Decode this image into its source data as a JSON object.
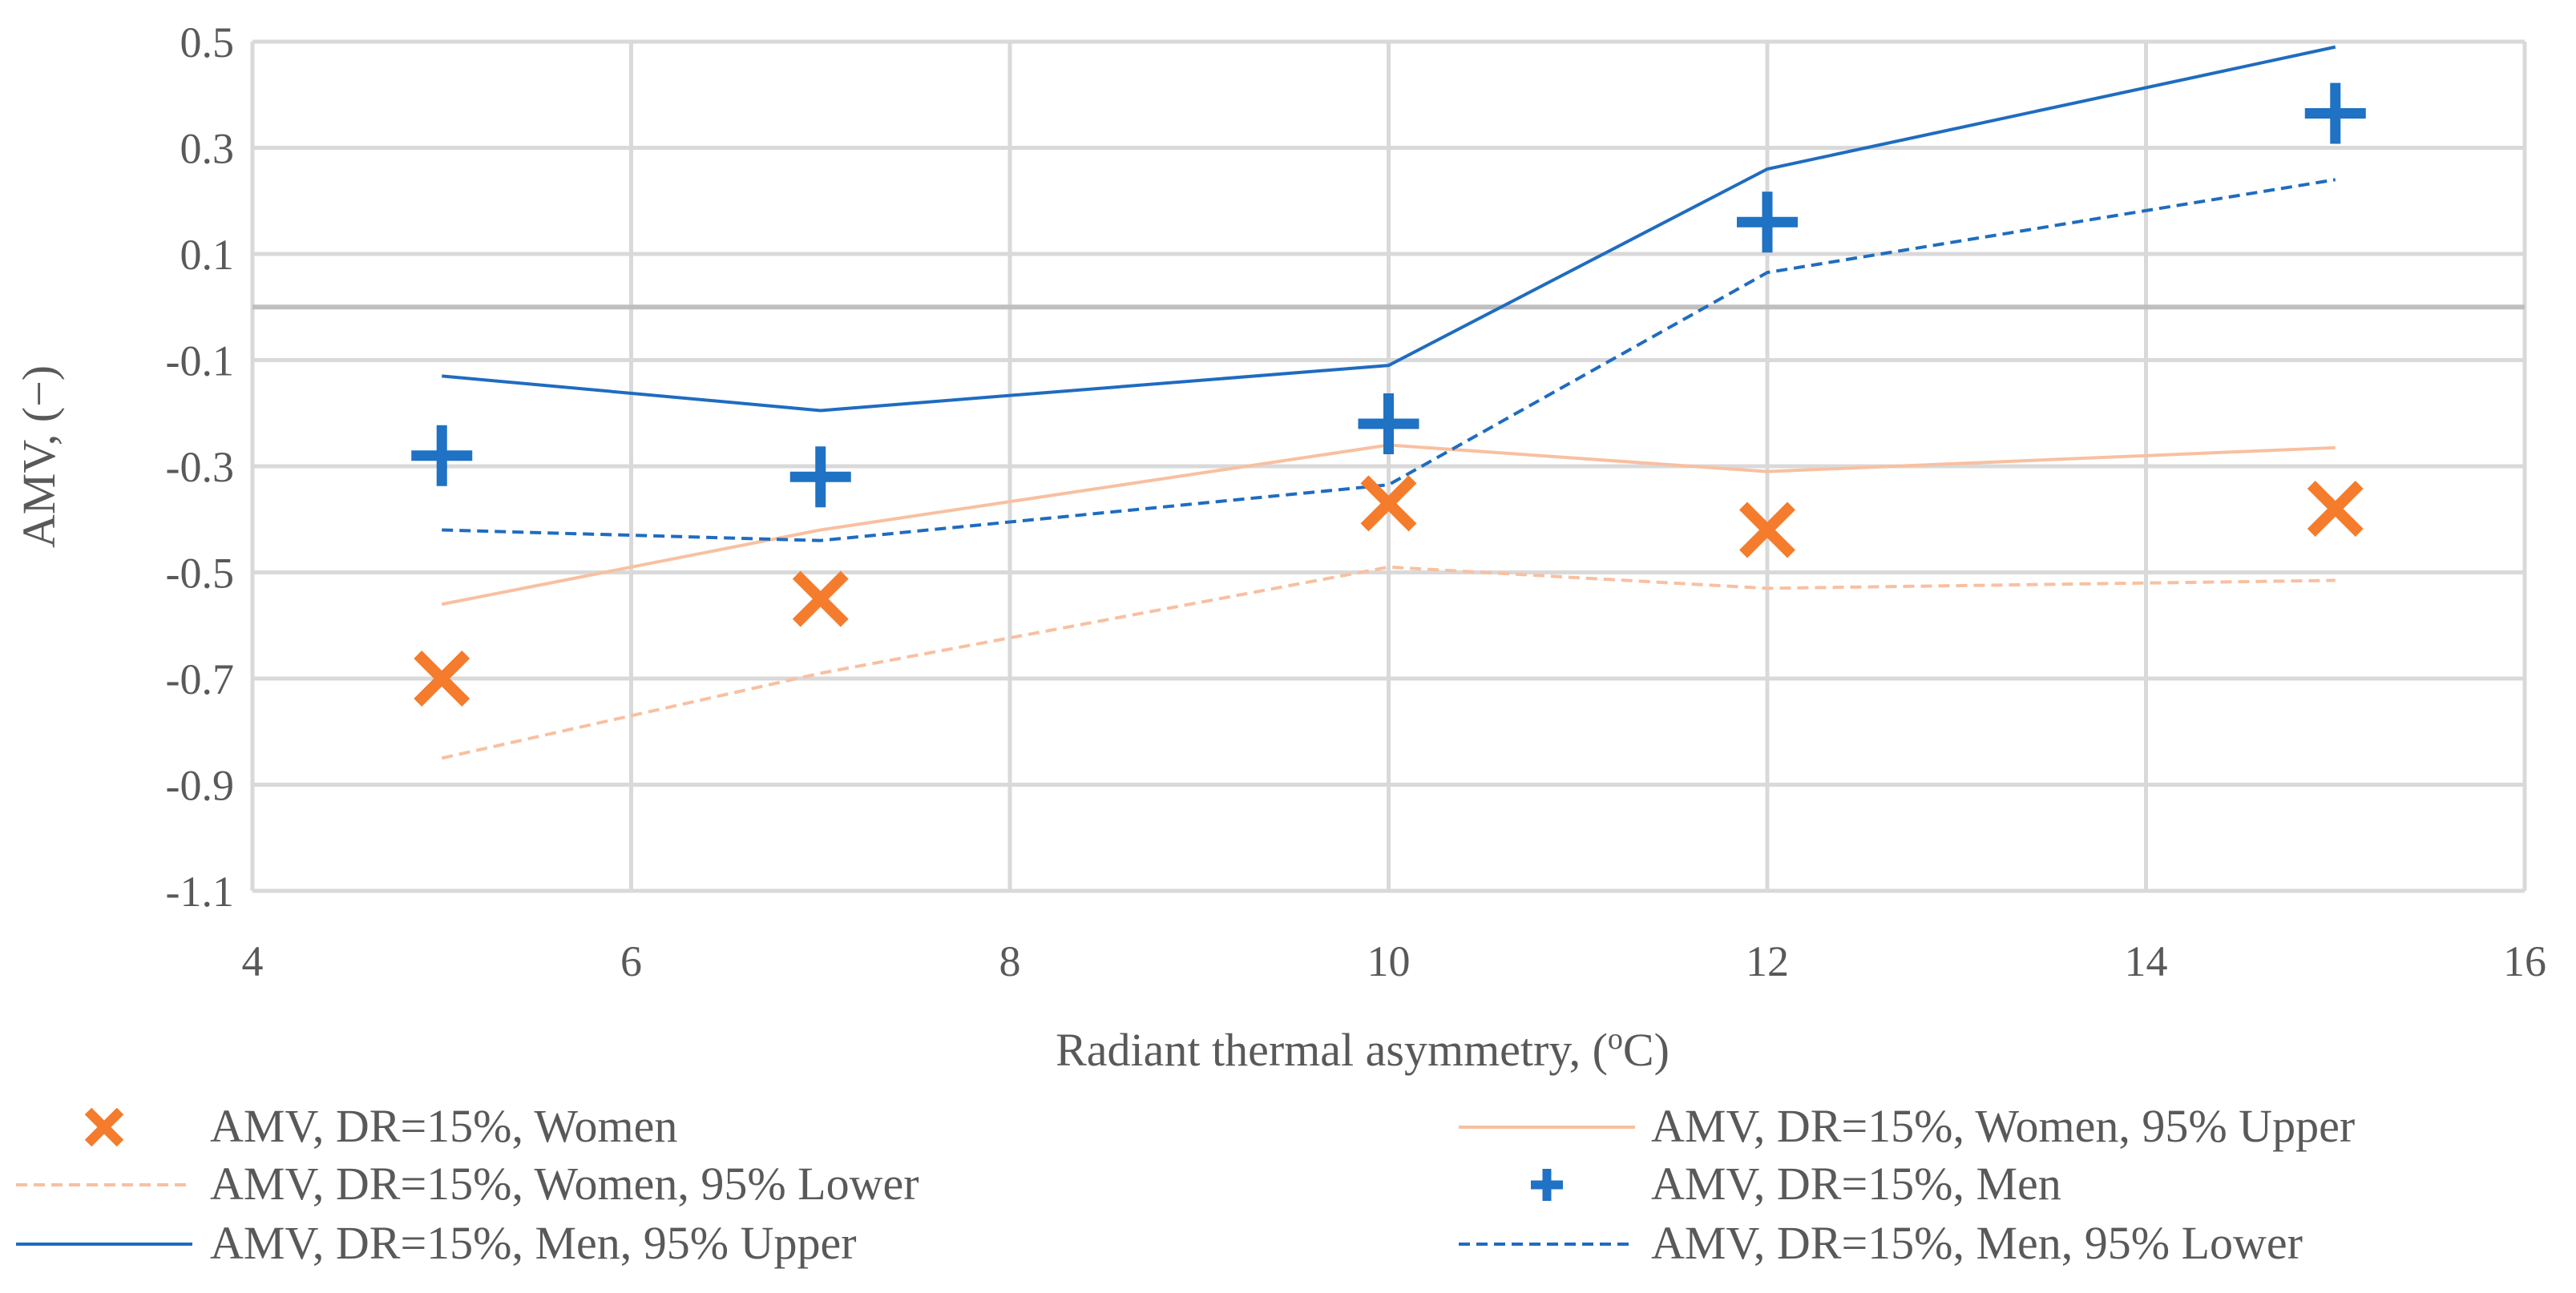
{
  "chart_data": {
    "type": "scatter",
    "title": "",
    "xlabel": "Radiant thermal asymmetry, (oC)",
    "xlabel_parts": [
      "Radiant thermal asymmetry, (",
      "o",
      "C)"
    ],
    "ylabel": "AMV, (−)",
    "xlim": [
      4,
      16
    ],
    "ylim": [
      -1.1,
      0.5
    ],
    "xticks": [
      "4",
      "6",
      "8",
      "10",
      "12",
      "14",
      "16"
    ],
    "yticks": [
      "0.5",
      "0.3",
      "0.1",
      "-0.1",
      "-0.3",
      "-0.5",
      "-0.7",
      "-0.9",
      "-1.1"
    ],
    "grid": true,
    "zero_line": true,
    "legend_position": "bottom",
    "x": [
      5,
      7,
      10,
      12,
      15
    ],
    "series": [
      {
        "name": "AMV, DR=15%, Women",
        "kind": "marker",
        "marker": "x",
        "color": "#F47C2C",
        "values": [
          -0.7,
          -0.55,
          -0.37,
          -0.42,
          -0.38
        ]
      },
      {
        "name": "AMV, DR=15%, Women, 95% Upper",
        "kind": "line",
        "dash": "solid",
        "color": "#F8C0A0",
        "values": [
          -0.56,
          -0.42,
          -0.26,
          -0.31,
          -0.265
        ]
      },
      {
        "name": "AMV, DR=15%, Women, 95% Lower",
        "kind": "line",
        "dash": "dashed",
        "color": "#F8C0A0",
        "values": [
          -0.85,
          -0.69,
          -0.49,
          -0.53,
          -0.515
        ]
      },
      {
        "name": "AMV, DR=15%, Men",
        "kind": "marker",
        "marker": "plus",
        "color": "#1F72C4",
        "values": [
          -0.28,
          -0.32,
          -0.22,
          0.16,
          0.365
        ]
      },
      {
        "name": "AMV, DR=15%, Men, 95% Upper",
        "kind": "line",
        "dash": "solid",
        "color": "#1F6CC0",
        "values": [
          -0.13,
          -0.195,
          -0.11,
          0.26,
          0.49
        ]
      },
      {
        "name": "AMV, DR=15%, Men, 95% Lower",
        "kind": "line",
        "dash": "dashed",
        "color": "#1F6CC0",
        "values": [
          -0.42,
          -0.44,
          -0.335,
          0.065,
          0.24
        ]
      }
    ]
  }
}
